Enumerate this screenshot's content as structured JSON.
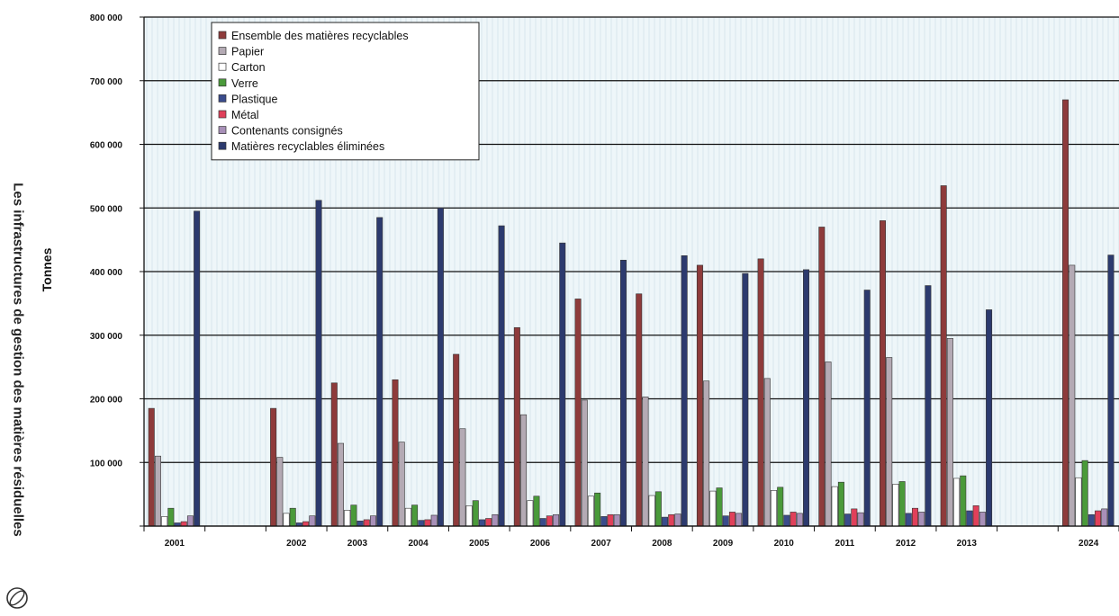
{
  "page": {
    "side_title": "Les infrastructures de gestion des matières résiduelles"
  },
  "chart_data": {
    "type": "bar",
    "title": "",
    "xlabel": "",
    "ylabel": "Tonnes",
    "ylim": [
      0,
      800000
    ],
    "yticks": [
      0,
      100000,
      200000,
      300000,
      400000,
      500000,
      600000,
      700000,
      800000
    ],
    "ytick_labels": [
      "",
      "100 000",
      "200 000",
      "300 000",
      "400 000",
      "500 000",
      "600 000",
      "700 000",
      "800 000"
    ],
    "grid": true,
    "legend_position": "top-left",
    "categories": [
      "2001",
      "",
      "2002",
      "2003",
      "2004",
      "2005",
      "2006",
      "2007",
      "2008",
      "2009",
      "2010",
      "2011",
      "2012",
      "2013",
      "",
      "2024"
    ],
    "series": [
      {
        "name": "Ensemble des matières recyclables",
        "color": "#8e3b3b",
        "values": [
          185000,
          null,
          185000,
          225000,
          230000,
          270000,
          312000,
          357000,
          365000,
          410000,
          420000,
          470000,
          480000,
          535000,
          null,
          670000
        ]
      },
      {
        "name": "Papier",
        "color": "#b4aab4",
        "values": [
          110000,
          null,
          108000,
          130000,
          132000,
          153000,
          175000,
          198000,
          203000,
          228000,
          232000,
          258000,
          265000,
          295000,
          null,
          410000
        ]
      },
      {
        "name": "Carton",
        "color": "#ffffff",
        "values": [
          15000,
          null,
          20000,
          25000,
          28000,
          32000,
          40000,
          47000,
          48000,
          55000,
          56000,
          62000,
          66000,
          75000,
          null,
          76000
        ]
      },
      {
        "name": "Verre",
        "color": "#4a9a3a",
        "values": [
          28000,
          null,
          28000,
          33000,
          33000,
          40000,
          47000,
          52000,
          54000,
          60000,
          61000,
          69000,
          70000,
          79000,
          null,
          103000
        ]
      },
      {
        "name": "Plastique",
        "color": "#3a4c8c",
        "values": [
          5000,
          null,
          5000,
          8000,
          9000,
          10000,
          12000,
          15000,
          14000,
          16000,
          17000,
          19000,
          20000,
          24000,
          null,
          18000
        ]
      },
      {
        "name": "Métal",
        "color": "#e0405a",
        "values": [
          7000,
          null,
          7000,
          10000,
          10000,
          12000,
          16000,
          18000,
          18000,
          22000,
          22000,
          27000,
          28000,
          32000,
          null,
          24000
        ]
      },
      {
        "name": "Contenants consignés",
        "color": "#a890b8",
        "values": [
          16000,
          null,
          16000,
          16000,
          17000,
          18000,
          18000,
          18000,
          19000,
          20000,
          20000,
          21000,
          22000,
          22000,
          null,
          27000
        ]
      },
      {
        "name": "Matières recyclables éliminées",
        "color": "#2c3a6e",
        "values": [
          495000,
          null,
          512000,
          485000,
          500000,
          472000,
          445000,
          418000,
          425000,
          397000,
          403000,
          371000,
          378000,
          340000,
          null,
          426000
        ]
      }
    ]
  }
}
